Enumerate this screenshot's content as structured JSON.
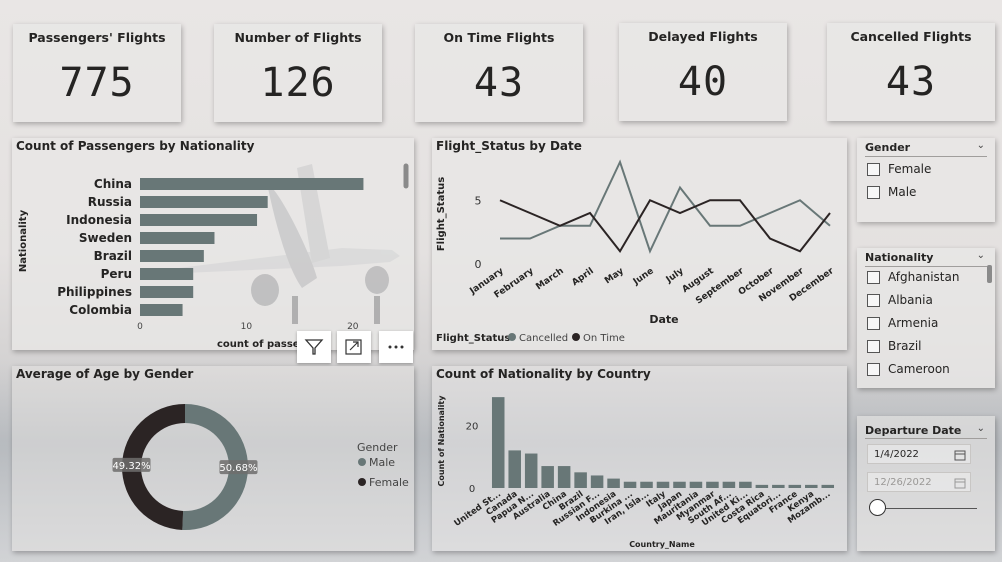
{
  "kpis": [
    {
      "title": "Passengers' Flights",
      "value": "775"
    },
    {
      "title": "Number of Flights",
      "value": "126"
    },
    {
      "title": "On Time Flights",
      "value": "43"
    },
    {
      "title": "Delayed Flights",
      "value": "40"
    },
    {
      "title": "Cancelled Flights",
      "value": "43"
    }
  ],
  "visuals": {
    "nationality_title": "Count of Passengers by Nationality",
    "status_title": "Flight_Status by Date",
    "age_title": "Average of Age by Gender",
    "country_title": "Count of Nationality by Country"
  },
  "slicers": {
    "gender": {
      "title": "Gender",
      "options": [
        "Female",
        "Male"
      ]
    },
    "nationality": {
      "title": "Nationality",
      "options": [
        "Afghanistan",
        "Albania",
        "Armenia",
        "Brazil",
        "Cameroon"
      ]
    },
    "departure": {
      "title": "Departure Date",
      "start": "1/4/2022",
      "end": "12/26/2022"
    }
  },
  "icons": {
    "filter": "filter-icon",
    "focus": "focus-mode-icon",
    "more": "more-options-icon",
    "calendar": "calendar-icon",
    "chevron": "chevron-down-icon"
  },
  "colors": {
    "gray": "#687777",
    "dark": "#2b2424",
    "text": "#252423"
  },
  "chart_data": [
    {
      "id": "nationality",
      "type": "bar",
      "orientation": "horizontal",
      "title": "Count of Passengers by Nationality",
      "xlabel": "count of passen",
      "ylabel": "Nationality",
      "categories": [
        "China",
        "Russia",
        "Indonesia",
        "Sweden",
        "Brazil",
        "Peru",
        "Philippines",
        "Colombia"
      ],
      "values": [
        21,
        12,
        11,
        7,
        6,
        5,
        5,
        4
      ],
      "xticks": [
        "0",
        "10",
        "20"
      ],
      "xlim": [
        0,
        25
      ]
    },
    {
      "id": "status",
      "type": "line",
      "title": "Flight_Status by Date",
      "xlabel": "Date",
      "ylabel": "Flight_Status",
      "categories": [
        "January",
        "February",
        "March",
        "April",
        "May",
        "June",
        "July",
        "August",
        "September",
        "October",
        "November",
        "December"
      ],
      "yticks": [
        "0",
        "5"
      ],
      "ylim": [
        0,
        8
      ],
      "legend_title": "Flight_Status",
      "series": [
        {
          "name": "Cancelled",
          "color": "#687777",
          "values": [
            2,
            2,
            3,
            3,
            8,
            1,
            6,
            3,
            3,
            4,
            5,
            3
          ]
        },
        {
          "name": "On Time",
          "color": "#2b2424",
          "values": [
            5,
            4,
            3,
            4,
            1,
            5,
            4,
            5,
            5,
            2,
            1,
            4
          ]
        }
      ]
    },
    {
      "id": "age",
      "type": "pie",
      "title": "Average of Age by Gender",
      "legend_title": "Gender",
      "slices": [
        {
          "name": "Male",
          "value": 50.68,
          "label": "50.68%",
          "color": "#687777"
        },
        {
          "name": "Female",
          "value": 49.32,
          "label": "49.32%",
          "color": "#2b2424"
        }
      ]
    },
    {
      "id": "country",
      "type": "bar",
      "title": "Count of Nationality by Country",
      "xlabel": "Country_Name",
      "ylabel": "Count of Nationality",
      "categories": [
        "United St...",
        "Canada",
        "Papua N...",
        "Australia",
        "China",
        "Brazil",
        "Russian F...",
        "Indonesia",
        "Burkina ...",
        "Iran, Isla...",
        "Italy",
        "Japan",
        "Mauritania",
        "Myanmar",
        "South Af...",
        "United Ki...",
        "Costa Rica",
        "Equatori...",
        "France",
        "Kenya",
        "Mozamb..."
      ],
      "values": [
        29,
        12,
        11,
        7,
        7,
        5,
        4,
        3,
        2,
        2,
        2,
        2,
        2,
        2,
        2,
        2,
        1,
        1,
        1,
        1,
        1
      ],
      "yticks": [
        "0",
        "20"
      ],
      "ylim": [
        0,
        30
      ]
    }
  ]
}
